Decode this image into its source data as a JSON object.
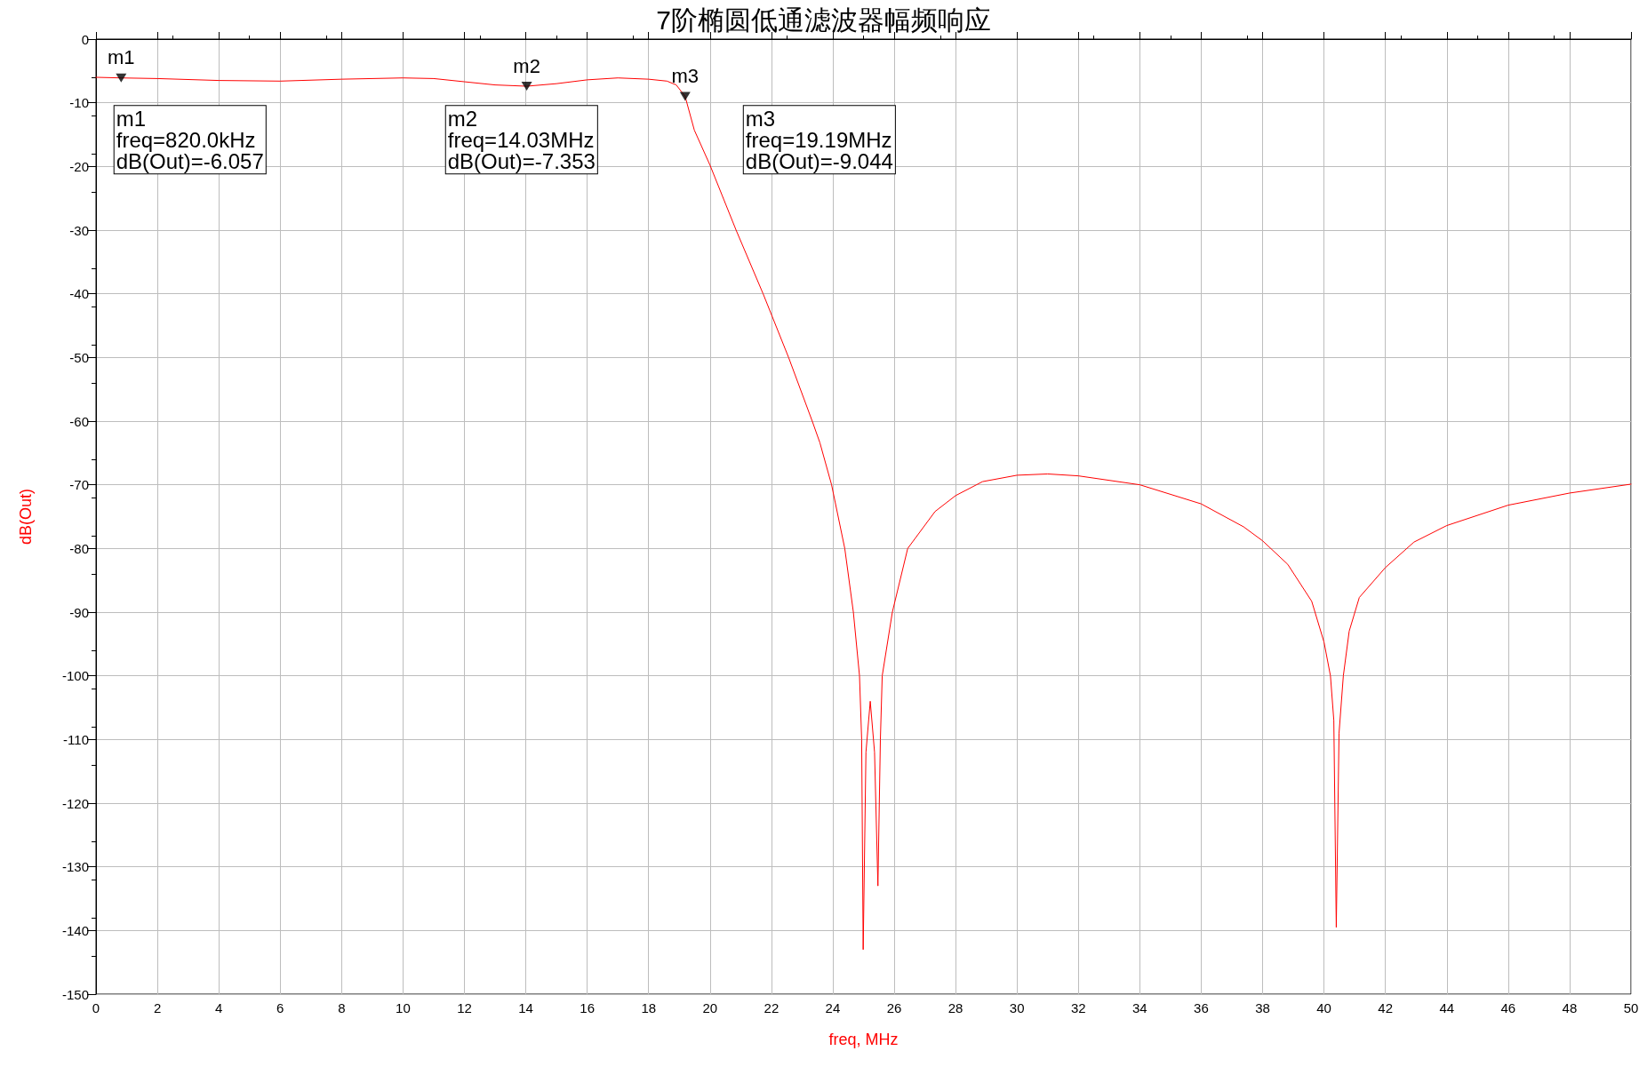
{
  "chart_data": {
    "type": "line",
    "title": "7阶椭圆低通滤波器幅频响应",
    "xlabel": "freq, MHz",
    "ylabel": "dB(Out)",
    "xlim": [
      0,
      50
    ],
    "xticks": [
      0,
      2,
      4,
      6,
      8,
      10,
      12,
      14,
      16,
      18,
      20,
      22,
      24,
      26,
      28,
      30,
      32,
      34,
      36,
      38,
      40,
      42,
      44,
      46,
      48,
      50
    ],
    "ylim": [
      -150,
      0
    ],
    "yticks": [
      -150,
      -140,
      -130,
      -120,
      -110,
      -100,
      -90,
      -80,
      -70,
      -60,
      -50,
      -40,
      -30,
      -20,
      -10,
      0
    ],
    "grid": true,
    "marker": "none",
    "line_style": "solid",
    "series": [
      {
        "color": "#ff0000",
        "x": [
          0,
          0.82,
          2,
          4,
          6,
          8,
          10,
          11,
          12,
          13,
          14.03,
          15,
          16,
          17,
          18,
          18.6,
          18.9,
          19.19,
          19.49,
          20,
          20.85,
          21.73,
          22.56,
          23.33,
          23.58,
          23.96,
          24.39,
          24.67,
          24.87,
          24.94,
          24.99,
          25.08,
          25.22,
          25.36,
          25.47,
          25.55,
          25.61,
          25.94,
          26.44,
          27.33,
          28,
          28.88,
          30,
          31,
          32,
          34,
          36,
          37.38,
          38,
          38.82,
          39.6,
          40,
          40.21,
          40.32,
          40.4,
          40.49,
          40.63,
          40.82,
          41.15,
          42,
          42.93,
          44,
          46,
          48,
          50
        ],
        "values": [
          -6.0,
          -6.1,
          -6.2,
          -6.5,
          -6.6,
          -6.3,
          -6.1,
          -6.2,
          -6.7,
          -7.2,
          -7.4,
          -7.0,
          -6.4,
          -6.1,
          -6.3,
          -6.6,
          -7.2,
          -9.0,
          -14.3,
          -19.8,
          -30,
          -40,
          -50,
          -60,
          -63.4,
          -70,
          -80,
          -90,
          -100,
          -110,
          -143,
          -112,
          -104,
          -112,
          -133,
          -110,
          -100,
          -90,
          -80,
          -74.2,
          -71.7,
          -69.5,
          -68.5,
          -68.3,
          -68.6,
          -70,
          -73,
          -76.6,
          -78.8,
          -82.5,
          -88.3,
          -94.7,
          -100,
          -107,
          -139.5,
          -109,
          -100,
          -93,
          -87.7,
          -83,
          -79,
          -76.4,
          -73.2,
          -71.3,
          -69.9
        ]
      },
      {
        "type": "scatter",
        "marker": "triangle",
        "color": "#000000",
        "x": [
          0.82,
          14.03,
          19.19
        ],
        "values": [
          -6.1,
          -7.4,
          -9.0
        ]
      }
    ],
    "annotations": [
      {
        "text": "m1",
        "x": 0.82,
        "y": -6.1
      },
      {
        "text": "m2",
        "x": 14.03,
        "y": -7.4
      },
      {
        "text": "m3",
        "x": 19.19,
        "y": -9.0
      },
      "m1\nfreq=820.0kHz\ndB(Out)=-6.057",
      "m2\nfreq=14.03MHz\ndB(Out)=-7.353",
      "m3\nfreq=19.19MHz\ndB(Out)=-9.044"
    ]
  }
}
